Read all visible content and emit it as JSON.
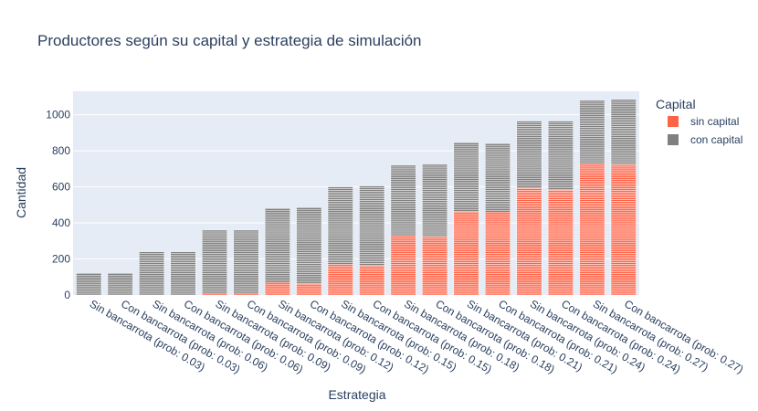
{
  "chart_data": {
    "type": "bar",
    "barmode": "stack",
    "title": "Productores según su capital y estrategia de simulación",
    "xlabel": "Estrategia",
    "ylabel": "Cantidad",
    "ylim": [
      0,
      1130
    ],
    "yticks": [
      0,
      200,
      400,
      600,
      800,
      1000
    ],
    "grid": true,
    "legend_placement": "right",
    "legend_title": "Capital",
    "categories": [
      "Sin bancarrota (prob: 0.03)",
      "Con bancarrota (prob: 0.03)",
      "Sin bancarrota (prob: 0.06)",
      "Con bancarrota (prob: 0.06)",
      "Sin bancarrota (prob: 0.09)",
      "Con bancarrota (prob: 0.09)",
      "Sin bancarrota (prob: 0.12)",
      "Con bancarrota (prob: 0.12)",
      "Sin bancarrota (prob: 0.15)",
      "Con bancarrota (prob: 0.15)",
      "Sin bancarrota (prob: 0.18)",
      "Con bancarrota (prob: 0.18)",
      "Sin bancarrota (prob: 0.21)",
      "Con bancarrota (prob: 0.21)",
      "Sin bancarrota (prob: 0.24)",
      "Con bancarrota (prob: 0.24)",
      "Sin bancarrota (prob: 0.27)",
      "Con bancarrota (prob: 0.27)"
    ],
    "series": [
      {
        "name": "sin capital",
        "color": "#ff6347",
        "values": [
          0,
          0,
          0,
          0,
          10,
          10,
          70,
          65,
          170,
          165,
          330,
          325,
          465,
          460,
          595,
          585,
          730,
          725
        ]
      },
      {
        "name": "con capital",
        "color": "#808080",
        "values": [
          120,
          120,
          240,
          240,
          350,
          350,
          410,
          415,
          430,
          435,
          390,
          395,
          375,
          380,
          365,
          375,
          350,
          355
        ]
      }
    ]
  }
}
